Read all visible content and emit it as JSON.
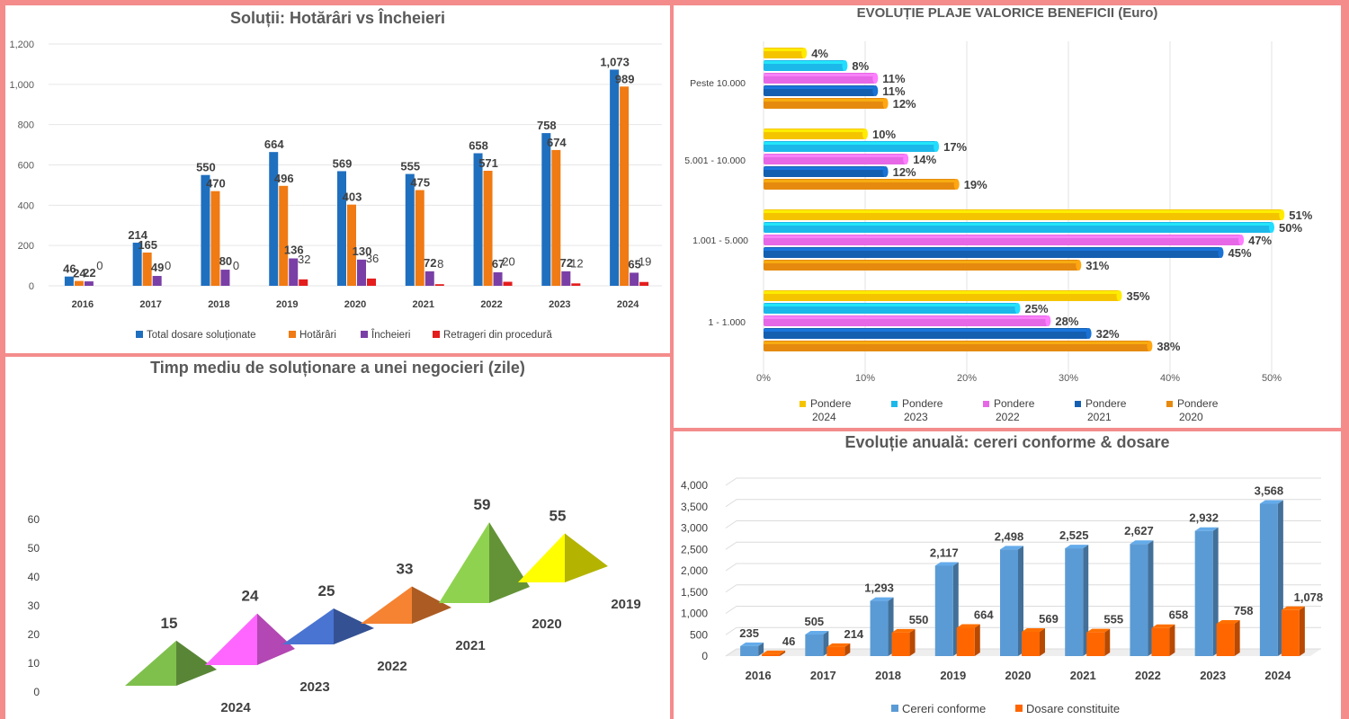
{
  "colors": {
    "border": "#f48c8c",
    "total": "#1f6fbf",
    "hotarari": "#f07a13",
    "incheieri": "#7a3fa6",
    "retrageri": "#e41d1d",
    "p2024": "#f5c400",
    "p2023": "#1cb8ea",
    "p2022": "#e668e6",
    "p2021": "#155fb1",
    "p2020": "#e58a0e",
    "cereri": "#5b9bd5",
    "dosare": "#ff6600"
  },
  "chart_data": [
    {
      "id": "solutii",
      "type": "bar",
      "title": "Soluții: Hotărâri vs Încheieri",
      "categories": [
        "2016",
        "2017",
        "2018",
        "2019",
        "2020",
        "2021",
        "2022",
        "2023",
        "2024"
      ],
      "ylim": [
        0,
        1200
      ],
      "yticks": [
        "0",
        "200",
        "400",
        "600",
        "800",
        "1,000",
        "1,200"
      ],
      "series": [
        {
          "name": "Total dosare soluționate",
          "values": [
            46,
            214,
            550,
            664,
            569,
            555,
            658,
            758,
            1073
          ],
          "labels": [
            "46",
            "214",
            "550",
            "664",
            "569",
            "555",
            "658",
            "758",
            "1,073"
          ]
        },
        {
          "name": "Hotărâri",
          "values": [
            24,
            165,
            470,
            496,
            403,
            475,
            571,
            674,
            989
          ],
          "labels": [
            "24",
            "165",
            "470",
            "496",
            "403",
            "475",
            "571",
            "674",
            "989"
          ]
        },
        {
          "name": "Încheieri",
          "values": [
            22,
            49,
            80,
            136,
            130,
            72,
            67,
            72,
            65
          ],
          "labels": [
            "22",
            "49",
            "80",
            "136",
            "130",
            "72",
            "67",
            "72",
            "65"
          ]
        },
        {
          "name": "Retrageri din procedură",
          "values": [
            0,
            0,
            0,
            32,
            36,
            8,
            20,
            12,
            19
          ],
          "labels": [
            "0",
            "0",
            "0",
            "32",
            "36",
            "8",
            "20",
            "12",
            "19"
          ]
        }
      ],
      "legend": "bottom"
    },
    {
      "id": "plaje",
      "type": "bar",
      "orientation": "horizontal",
      "title": "EVOLUȚIE PLAJE VALORICE BENEFICII (Euro)",
      "categories": [
        "Peste 10.000",
        "5.001 - 10.000",
        "1.001 - 5.000",
        "1 - 1.000"
      ],
      "xlim": [
        0,
        50
      ],
      "xticks": [
        "0%",
        "10%",
        "20%",
        "30%",
        "40%",
        "50%"
      ],
      "series": [
        {
          "name": "Pondere 2024",
          "values": [
            4,
            10,
            51,
            35
          ]
        },
        {
          "name": "Pondere 2023",
          "values": [
            8,
            17,
            50,
            25
          ]
        },
        {
          "name": "Pondere 2022",
          "values": [
            11,
            14,
            47,
            28
          ]
        },
        {
          "name": "Pondere 2021",
          "values": [
            11,
            12,
            45,
            32
          ]
        },
        {
          "name": "Pondere 2020",
          "values": [
            12,
            19,
            31,
            38
          ]
        }
      ],
      "legend": "bottom"
    },
    {
      "id": "timp",
      "type": "bar",
      "shape": "pyramid",
      "title": "Timp mediu de soluționare a unei negocieri (zile)",
      "categories": [
        "2024",
        "2023",
        "2022",
        "2021",
        "2020",
        "2019"
      ],
      "values": [
        15,
        24,
        25,
        33,
        59,
        55
      ],
      "yticks": [
        "0",
        "10",
        "20",
        "30",
        "40",
        "50",
        "60"
      ]
    },
    {
      "id": "evolutie",
      "type": "bar",
      "title": "Evoluție anuală: cereri conforme & dosare",
      "categories": [
        "2016",
        "2017",
        "2018",
        "2019",
        "2020",
        "2021",
        "2022",
        "2023",
        "2024"
      ],
      "ylim": [
        0,
        4000
      ],
      "yticks": [
        "0",
        "500",
        "1,000",
        "1,500",
        "2,000",
        "2,500",
        "3,000",
        "3,500",
        "4,000"
      ],
      "series": [
        {
          "name": "Cereri conforme",
          "values": [
            235,
            505,
            1293,
            2117,
            2498,
            2525,
            2627,
            2932,
            3568
          ],
          "labels": [
            "235",
            "505",
            "1,293",
            "2,117",
            "2,498",
            "2,525",
            "2,627",
            "2,932",
            "3,568"
          ]
        },
        {
          "name": "Dosare constituite",
          "values": [
            46,
            214,
            550,
            664,
            569,
            555,
            658,
            758,
            1078
          ],
          "labels": [
            "46",
            "214",
            "550",
            "664",
            "569",
            "555",
            "658",
            "758",
            "1,078"
          ]
        }
      ],
      "legend": "bottom"
    }
  ]
}
